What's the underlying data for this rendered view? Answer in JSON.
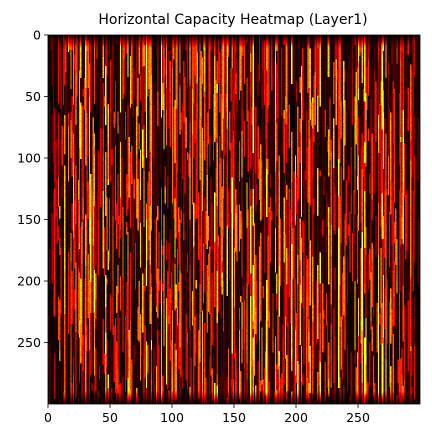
{
  "chart_data": {
    "type": "heatmap",
    "title": "Horizontal Capacity Heatmap (Layer1)",
    "xlabel": "",
    "ylabel": "",
    "xlim": [
      0,
      300
    ],
    "ylim": [
      300,
      0
    ],
    "grid": false,
    "colormap": "hot",
    "colorbar": false,
    "grid_shape": [
      300,
      300
    ],
    "pattern": "vertical column-wise streaks of high values on a dark background; darker border band around the edges",
    "x_ticks": [
      {
        "value": 0,
        "label": "0"
      },
      {
        "value": 50,
        "label": "50"
      },
      {
        "value": 100,
        "label": "100"
      },
      {
        "value": 150,
        "label": "150"
      },
      {
        "value": 200,
        "label": "200"
      },
      {
        "value": 250,
        "label": "250"
      }
    ],
    "y_ticks": [
      {
        "value": 0,
        "label": "0"
      },
      {
        "value": 50,
        "label": "50"
      },
      {
        "value": 100,
        "label": "100"
      },
      {
        "value": 150,
        "label": "150"
      },
      {
        "value": 200,
        "label": "200"
      },
      {
        "value": 250,
        "label": "250"
      }
    ],
    "colors": {
      "low": "#000000",
      "mid_low": "#6e0000",
      "mid": "#d41a00",
      "high": "#ff8c00",
      "max": "#ffffc8"
    }
  }
}
